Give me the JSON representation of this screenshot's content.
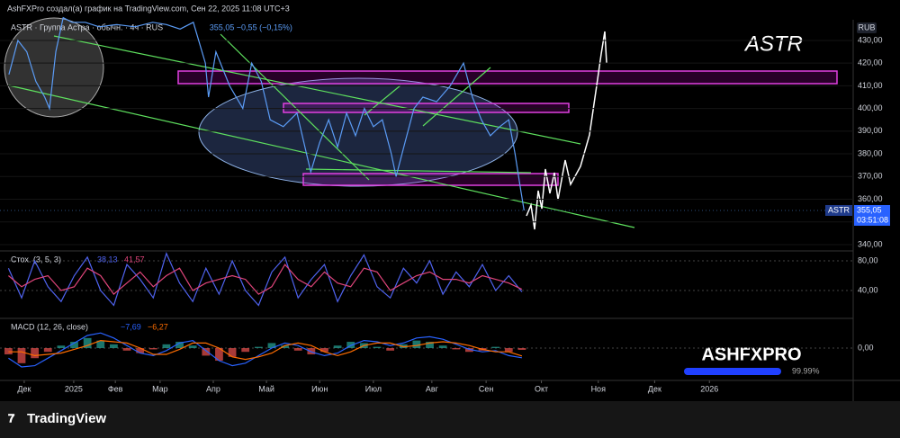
{
  "header": {
    "text": "AshFXPro создал(а) график на TradingView.com, Сен 22, 2025 11:08 UTC+3"
  },
  "annotations": {
    "currency": "RUB",
    "symbol_note": "ASTR",
    "watermark": "ASHFXPRO",
    "watermark_percent": "99.99%"
  },
  "footer": {
    "brand": "TradingView"
  },
  "chart_data": [
    {
      "type": "line",
      "title": "ASTR · Группа Астра · обычн. · 4ч · RUS",
      "subtitle": [
        "355,05",
        "−0,55 (−0,15%)"
      ],
      "color": "#5b9cf6",
      "x": [
        -0.29,
        -0.12,
        0.05,
        0.22,
        0.39,
        0.48,
        0.6,
        0.74,
        0.91,
        1.16,
        1.42,
        1.76,
        2.1,
        2.44,
        2.7,
        2.96,
        3.21,
        3.44,
        3.5,
        3.64,
        3.9,
        4.15,
        4.32,
        4.5,
        4.67,
        4.92,
        5.18,
        5.44,
        5.61,
        5.78,
        5.95,
        6.12,
        6.29,
        6.46,
        6.63,
        6.8,
        6.97,
        7.06,
        7.23,
        7.4,
        7.57,
        7.83,
        8.09,
        8.34,
        8.51,
        8.68,
        8.85,
        9.03,
        9.2,
        9.32,
        9.42,
        9.49
      ],
      "values": [
        415,
        430,
        425,
        412,
        405,
        400,
        425,
        440,
        438,
        438,
        436,
        437,
        436,
        438,
        437,
        435,
        438,
        420,
        405,
        425,
        410,
        400,
        420,
        412,
        395,
        392,
        398,
        372,
        385,
        395,
        383,
        398,
        388,
        400,
        392,
        395,
        380,
        370,
        385,
        400,
        405,
        403,
        410,
        420,
        405,
        395,
        388,
        392,
        395,
        380,
        365,
        355.05
      ],
      "last_label": {
        "symbol": "ASTR",
        "price": "355,05",
        "countdown": "03:51:08"
      },
      "xlim": [
        -0.46,
        15.74
      ],
      "xticks": [
        {
          "value": 0,
          "label": "Дек"
        },
        {
          "value": 0.94,
          "label": "2025"
        },
        {
          "value": 1.73,
          "label": "Фев"
        },
        {
          "value": 2.58,
          "label": "Мар"
        },
        {
          "value": 3.59,
          "label": "Апр"
        },
        {
          "value": 4.6,
          "label": "Май"
        },
        {
          "value": 5.61,
          "label": "Июн"
        },
        {
          "value": 6.63,
          "label": "Июл"
        },
        {
          "value": 7.74,
          "label": "Авг"
        },
        {
          "value": 8.77,
          "label": "Сен"
        },
        {
          "value": 9.82,
          "label": "Окт"
        },
        {
          "value": 10.9,
          "label": "Ноя"
        },
        {
          "value": 11.97,
          "label": "Дек"
        },
        {
          "value": 13.01,
          "label": "2026"
        }
      ],
      "ylim": [
        337.6,
        439.1
      ],
      "yticks": [
        {
          "value": 340,
          "label": "340,00"
        },
        {
          "value": 350,
          "label": "350,00"
        },
        {
          "value": 360,
          "label": "360,00"
        },
        {
          "value": 370,
          "label": "370,00"
        },
        {
          "value": 380,
          "label": "380,00"
        },
        {
          "value": 390,
          "label": "390,00"
        },
        {
          "value": 400,
          "label": "400,00"
        },
        {
          "value": 410,
          "label": "410,00"
        },
        {
          "value": 420,
          "label": "420,00"
        },
        {
          "value": 430,
          "label": "430,00"
        }
      ]
    },
    {
      "type": "line",
      "title": "Стох. (3, 5, 3)",
      "legend_values": [
        "38,13",
        "41,57"
      ],
      "x": [
        -0.3,
        -0.05,
        0.2,
        0.45,
        0.7,
        0.95,
        1.2,
        1.45,
        1.7,
        1.95,
        2.2,
        2.45,
        2.7,
        2.95,
        3.2,
        3.45,
        3.7,
        3.95,
        4.2,
        4.45,
        4.7,
        4.95,
        5.2,
        5.45,
        5.7,
        5.95,
        6.2,
        6.45,
        6.7,
        6.95,
        7.2,
        7.45,
        7.7,
        7.95,
        8.2,
        8.45,
        8.7,
        8.95,
        9.2,
        9.45
      ],
      "series": [
        {
          "color": "#4f63f0",
          "values": [
            70,
            30,
            80,
            45,
            25,
            60,
            85,
            40,
            20,
            75,
            55,
            30,
            90,
            50,
            25,
            70,
            35,
            80,
            40,
            20,
            65,
            85,
            30,
            55,
            75,
            25,
            60,
            88,
            45,
            30,
            70,
            50,
            80,
            35,
            65,
            45,
            75,
            40,
            60,
            38.13
          ]
        },
        {
          "color": "#e0457b",
          "values": [
            60,
            45,
            55,
            60,
            40,
            45,
            70,
            60,
            35,
            50,
            65,
            45,
            60,
            70,
            40,
            50,
            55,
            60,
            55,
            35,
            45,
            75,
            55,
            45,
            65,
            50,
            45,
            70,
            65,
            40,
            50,
            60,
            65,
            55,
            55,
            50,
            60,
            55,
            50,
            41.57
          ]
        }
      ],
      "ylim": [
        4.8,
        92.1
      ],
      "yticks": [
        {
          "value": 40,
          "label": "40,00"
        },
        {
          "value": 80,
          "label": "80,00"
        }
      ]
    },
    {
      "type": "bar",
      "title": "MACD (12, 26, close)",
      "legend_values": [
        "−7,69",
        "−6,27"
      ],
      "colors": {
        "positive": "#26a69a",
        "negative": "#ef5350"
      },
      "x": [
        -0.3,
        -0.05,
        0.2,
        0.45,
        0.7,
        0.95,
        1.2,
        1.45,
        1.7,
        1.95,
        2.2,
        2.45,
        2.7,
        2.95,
        3.2,
        3.45,
        3.7,
        3.95,
        4.2,
        4.45,
        4.7,
        4.95,
        5.2,
        5.45,
        5.7,
        5.95,
        6.2,
        6.45,
        6.7,
        6.95,
        7.2,
        7.45,
        7.7,
        7.95,
        8.2,
        8.45,
        8.7,
        8.95,
        9.2,
        9.45
      ],
      "values": [
        -5,
        -12,
        -8,
        -3,
        2,
        5,
        8,
        6,
        3,
        -2,
        -4,
        -1,
        3,
        5,
        2,
        -6,
        -10,
        -7,
        -3,
        1,
        4,
        2,
        -2,
        -5,
        -3,
        2,
        5,
        4,
        1,
        -2,
        3,
        6,
        5,
        2,
        -1,
        -3,
        -2,
        1,
        -3,
        -1.42
      ],
      "series": [
        {
          "color": "#2962ff",
          "values": [
            -8,
            -15,
            -14,
            -8,
            -2,
            4,
            10,
            12,
            8,
            2,
            -4,
            -6,
            -2,
            4,
            6,
            -2,
            -10,
            -14,
            -12,
            -6,
            0,
            4,
            2,
            -3,
            -6,
            -4,
            2,
            6,
            5,
            2,
            4,
            8,
            9,
            7,
            3,
            -1,
            -3,
            -2,
            -6,
            -7.69
          ]
        },
        {
          "color": "#ff6d00",
          "values": [
            -3,
            -3,
            -6,
            -5,
            -4,
            -1,
            2,
            6,
            5,
            4,
            0,
            -5,
            -5,
            -1,
            4,
            4,
            0,
            -7,
            -9,
            -7,
            -4,
            2,
            4,
            2,
            -3,
            -6,
            -3,
            2,
            4,
            4,
            1,
            2,
            4,
            5,
            4,
            2,
            -1,
            -3,
            -3,
            -6.27
          ]
        }
      ],
      "ylim": [
        -25,
        22.9
      ],
      "yticks": [
        {
          "value": 0,
          "label": "0,00"
        }
      ]
    }
  ]
}
